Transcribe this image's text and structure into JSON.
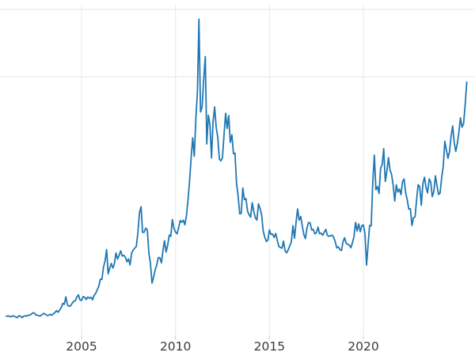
{
  "chart_data": {
    "type": "line",
    "title": "",
    "xlabel": "",
    "ylabel": "",
    "x_unit": "year",
    "x_start": 2001.0,
    "x_step": 0.08333,
    "xlim": [
      2000.66,
      2025.94
    ],
    "ylim": [
      1.5,
      51.5
    ],
    "grid": true,
    "legend": false,
    "line_color": "#1f77b4",
    "grid_color": "#e7e7e7",
    "tick_color": "#c9c9c9",
    "tick_label_color": "#3a3a3a",
    "x_ticks": [
      {
        "year": 2005,
        "label": "2005"
      },
      {
        "year": 2010,
        "label": "2010"
      },
      {
        "year": 2015,
        "label": "2015"
      },
      {
        "year": 2020,
        "label": "2020"
      }
    ],
    "y_gridlines": [
      40,
      50
    ],
    "values": [
      4.37,
      4.45,
      4.35,
      4.33,
      4.43,
      4.38,
      4.27,
      4.18,
      4.47,
      4.39,
      4.19,
      4.37,
      4.43,
      4.43,
      4.53,
      4.54,
      4.71,
      4.9,
      4.83,
      4.54,
      4.54,
      4.41,
      4.48,
      4.67,
      4.81,
      4.66,
      4.51,
      4.53,
      4.67,
      4.52,
      4.76,
      4.93,
      5.22,
      4.98,
      5.29,
      5.66,
      6.31,
      6.15,
      7.27,
      6.08,
      5.87,
      5.93,
      6.31,
      6.61,
      6.67,
      7.23,
      7.57,
      6.82,
      6.72,
      7.31,
      7.21,
      6.87,
      7.25,
      7.06,
      7.21,
      6.82,
      7.46,
      7.77,
      8.32,
      8.83,
      9.88,
      9.86,
      11.67,
      12.62,
      14.29,
      10.7,
      11.55,
      12.23,
      11.55,
      12.16,
      13.79,
      12.9,
      13.45,
      14.11,
      13.34,
      13.45,
      13.15,
      12.47,
      12.91,
      12.02,
      13.79,
      14.24,
      14.53,
      14.76,
      16.86,
      19.81,
      20.67,
      16.86,
      16.87,
      17.5,
      17.22,
      13.71,
      12.31,
      9.3,
      10.2,
      11.3,
      11.95,
      13.11,
      13.11,
      12.32,
      14.2,
      15.61,
      13.94,
      14.95,
      16.45,
      16.26,
      18.76,
      17.5,
      16.9,
      16.65,
      17.52,
      18.61,
      18.36,
      18.67,
      17.99,
      19.3,
      21.71,
      24.56,
      28.07,
      30.91,
      28.18,
      33.73,
      37.87,
      48.58,
      34.77,
      35.5,
      39.63,
      43.0,
      30.0,
      34.28,
      32.8,
      27.92,
      33.26,
      35.52,
      32.43,
      31.01,
      27.75,
      27.5,
      27.97,
      31.4,
      34.57,
      32.3,
      34.23,
      30.23,
      31.36,
      28.55,
      28.64,
      24.17,
      22.24,
      19.61,
      19.7,
      23.46,
      21.72,
      21.87,
      20.01,
      19.47,
      19.12,
      21.26,
      19.97,
      19.05,
      18.68,
      21.09,
      20.41,
      19.44,
      17.11,
      16.16,
      15.51,
      15.71,
      17.23,
      16.55,
      16.6,
      16.1,
      16.7,
      15.7,
      14.78,
      14.59,
      14.52,
      15.55,
      14.1,
      13.82,
      14.27,
      14.9,
      15.45,
      17.85,
      15.99,
      18.36,
      20.34,
      18.68,
      19.21,
      17.76,
      16.47,
      15.93,
      17.54,
      18.33,
      18.25,
      17.22,
      17.31,
      16.63,
      16.8,
      17.63,
      16.68,
      16.74,
      16.42,
      16.87,
      17.31,
      16.41,
      16.27,
      16.35,
      16.44,
      16.13,
      15.5,
      14.55,
      14.71,
      14.28,
      14.14,
      15.47,
      16.06,
      15.21,
      15.11,
      14.95,
      14.57,
      15.31,
      16.26,
      18.34,
      17.07,
      18.11,
      16.95,
      17.85,
      17.97,
      16.67,
      12.0,
      15.08,
      17.88,
      17.84,
      24.39,
      28.33,
      23.19,
      23.67,
      22.64,
      26.4,
      26.95,
      29.3,
      24.42,
      25.92,
      27.98,
      26.13,
      25.49,
      23.89,
      21.53,
      23.93,
      22.85,
      23.31,
      22.47,
      24.43,
      24.8,
      22.76,
      21.7,
      20.32,
      20.37,
      17.88,
      19.03,
      19.15,
      21.8,
      23.95,
      23.62,
      20.9,
      24.1,
      25.05,
      23.56,
      22.73,
      24.8,
      24.37,
      22.18,
      22.94,
      25.26,
      23.79,
      22.5,
      22.69,
      24.96,
      26.72,
      30.41,
      29.14,
      27.87,
      28.83,
      31.15,
      32.68,
      30.25,
      28.9,
      30.1,
      31.8,
      33.9,
      32.5,
      33.0,
      35.9,
      39.2
    ]
  }
}
